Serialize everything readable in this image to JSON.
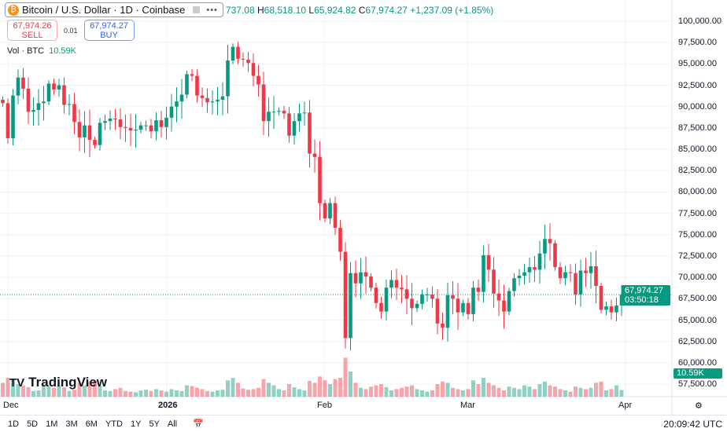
{
  "header": {
    "symbol": "Bitcoin / U.S. Dollar · 1D · Coinbase",
    "open_partial": "737.08",
    "h_label": "H",
    "high": "68,518.10",
    "l_label": "L",
    "low": "65,924.82",
    "c_label": "C",
    "close": "67,974.27",
    "change": "+1,237.09 (+1.85%)",
    "more_icon": "•••"
  },
  "trade": {
    "sell_price": "67,974.26",
    "sell_label": "SELL",
    "spread": "0.01",
    "buy_price": "67,974.27",
    "buy_label": "BUY"
  },
  "volume_legend": {
    "label": "Vol · BTC",
    "value": "10.59K"
  },
  "price_axis": [
    "100,000.00",
    "97,500.00",
    "95,000.00",
    "92,500.00",
    "90,000.00",
    "87,500.00",
    "85,000.00",
    "82,500.00",
    "80,000.00",
    "77,500.00",
    "75,000.00",
    "72,500.00",
    "70,000.00",
    "67,500.00",
    "65,000.00",
    "62,500.00",
    "60,000.00",
    "57,500.00"
  ],
  "last_price": {
    "price": "67,974.27",
    "countdown": "03:50:18",
    "volume": "10.59K"
  },
  "time_axis": [
    "Dec",
    "2026",
    "Feb",
    "Mar",
    "Apr"
  ],
  "logo": "TradingView",
  "bottom": {
    "ranges": [
      "1D",
      "5D",
      "1M",
      "3M",
      "6M",
      "YTD",
      "1Y",
      "5Y",
      "All"
    ],
    "clock": "20:09:42 UTC"
  },
  "colors": {
    "up": "#089981",
    "down": "#f23645"
  },
  "chart_data": {
    "type": "candlestick",
    "first_date": "2025-11-30",
    "last_date": "2026-03-31",
    "ylim": [
      57500,
      101000
    ],
    "closes": [
      90.4,
      86.3,
      91.3,
      93.4,
      92.1,
      89.4,
      89.6,
      90.4,
      90.6,
      92.7,
      92.0,
      92.5,
      90.2,
      90.3,
      88.2,
      86.4,
      87.8,
      86.1,
      85.5,
      88.1,
      88.3,
      88.6,
      88.5,
      87.6,
      87.5,
      87.2,
      87.3,
      87.8,
      87.8,
      87.1,
      88.4,
      87.6,
      88.7,
      90.0,
      90.6,
      91.4,
      93.8,
      93.6,
      91.3,
      91.0,
      90.5,
      90.6,
      90.8,
      91.2,
      95.4,
      97.0,
      95.6,
      95.5,
      95.1,
      93.6,
      92.6,
      88.3,
      89.4,
      89.4,
      89.5,
      89.2,
      86.6,
      88.3,
      89.2,
      89.3,
      84.5,
      84.1,
      78.7,
      76.9,
      78.7,
      75.8,
      73.0,
      62.9,
      70.5,
      69.3,
      70.6,
      70.1,
      68.8,
      67.0,
      66.0,
      68.8,
      69.7,
      68.8,
      68.6,
      67.5,
      66.4,
      66.9,
      68.0,
      68.0,
      67.5,
      64.6,
      64.1,
      67.9,
      67.5,
      65.9,
      67.0,
      65.7,
      68.8,
      68.3,
      72.6,
      70.9,
      68.1,
      67.3,
      66.0,
      68.4,
      69.9,
      70.2,
      70.6,
      71.2,
      70.9,
      72.8,
      74.5,
      74.0,
      71.2,
      69.9,
      70.6,
      70.5,
      68.0,
      70.8,
      70.5,
      71.3,
      69.0,
      66.2,
      66.6,
      65.9,
      66.7,
      67.974
    ],
    "volumes_k": [
      22,
      30,
      28,
      20,
      18,
      15,
      9,
      10,
      17,
      16,
      14,
      18,
      15,
      9,
      11,
      22,
      18,
      24,
      25,
      17,
      10,
      9,
      12,
      14,
      9,
      8,
      7,
      10,
      11,
      9,
      12,
      10,
      8,
      12,
      10,
      9,
      18,
      17,
      14,
      12,
      9,
      8,
      10,
      11,
      26,
      30,
      22,
      13,
      11,
      12,
      14,
      28,
      22,
      18,
      12,
      10,
      20,
      15,
      12,
      10,
      25,
      22,
      32,
      26,
      20,
      28,
      30,
      62,
      40,
      22,
      14,
      12,
      16,
      18,
      20,
      15,
      10,
      12,
      14,
      16,
      18,
      12,
      10,
      8,
      10,
      20,
      24,
      22,
      14,
      12,
      10,
      12,
      26,
      20,
      30,
      22,
      18,
      14,
      10,
      16,
      14,
      12,
      18,
      16,
      12,
      20,
      24,
      18,
      16,
      12,
      10,
      8,
      16,
      14,
      12,
      14,
      22,
      24,
      10,
      12,
      18,
      10.59
    ]
  }
}
